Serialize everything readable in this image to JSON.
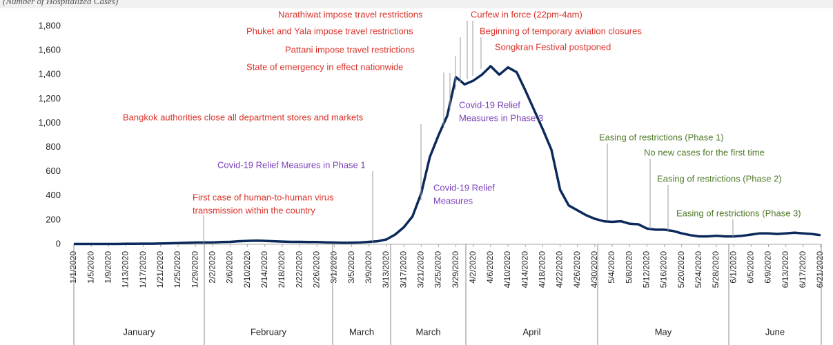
{
  "chart_data": {
    "type": "line",
    "subtitle": "(Number of Hospitalized Cases)",
    "categories": [
      "1/1/2020",
      null,
      "1/5/2020",
      null,
      "1/9/2020",
      null,
      "1/13/2020",
      null,
      "1/17/2020",
      null,
      "1/21/2020",
      null,
      "1/25/2020",
      null,
      "1/29/2020",
      null,
      "2/2/2020",
      null,
      "2/6/2020",
      null,
      "2/10/2020",
      null,
      "2/14/2020",
      null,
      "2/18/2020",
      null,
      "2/22/2020",
      null,
      "2/26/2020",
      null,
      "3/1/2020",
      null,
      "3/5/2020",
      null,
      "3/9/2020",
      null,
      "3/13/2020",
      null,
      "3/17/2020",
      null,
      "3/21/2020",
      null,
      "3/25/2020",
      null,
      "3/29/2020",
      null,
      "4/2/2020",
      null,
      "4/6/2020",
      null,
      "4/10/2020",
      null,
      "4/14/2020",
      null,
      "4/18/2020",
      null,
      "4/22/2020",
      null,
      "4/26/2020",
      null,
      "4/30/2020",
      null,
      "5/4/2020",
      null,
      "5/8/2020",
      null,
      "5/12/2020",
      null,
      "5/16/2020",
      null,
      "5/20/2020",
      null,
      "5/24/2020",
      null,
      "5/28/2020",
      null,
      "6/1/2020",
      null,
      "6/5/2020",
      null,
      "6/9/2020",
      null,
      "6/13/2020",
      null,
      "6/17/2020",
      null,
      "6/21/2020"
    ],
    "series": [
      {
        "color": "#0b2a5b",
        "values": [
          3,
          3,
          3,
          3,
          3,
          3,
          4,
          4,
          5,
          5,
          6,
          8,
          10,
          12,
          14,
          15,
          15,
          18,
          20,
          25,
          28,
          30,
          28,
          25,
          22,
          20,
          20,
          18,
          18,
          16,
          14,
          12,
          13,
          15,
          20,
          25,
          40,
          80,
          140,
          230,
          420,
          720,
          900,
          1060,
          1380,
          1320,
          1350,
          1400,
          1470,
          1400,
          1460,
          1420,
          1270,
          1110,
          950,
          780,
          450,
          320,
          280,
          240,
          210,
          190,
          185,
          190,
          170,
          165,
          130,
          120,
          120,
          110,
          90,
          75,
          65,
          65,
          70,
          65,
          65,
          70,
          80,
          90,
          90,
          85,
          90,
          95,
          90,
          85,
          75
        ]
      }
    ],
    "ylim": [
      0,
      1800
    ],
    "yticks": [
      0,
      200,
      400,
      600,
      800,
      {
        "value": 1000,
        "label": "1,000"
      },
      {
        "value": 1200,
        "label": "1,200"
      },
      {
        "value": 1400,
        "label": "1,400"
      },
      {
        "value": 1600,
        "label": "1,600"
      },
      {
        "value": 1800,
        "label": "1,800"
      }
    ],
    "month_labels": [
      "January",
      "February",
      "March",
      "March",
      "April",
      "May",
      "June"
    ],
    "annotations": [
      {
        "text": [
          "Narathiwat impose travel restrictions"
        ],
        "color": "#d9342b"
      },
      {
        "text": [
          "Curfew in force (22pm-4am)"
        ],
        "color": "#d9342b"
      },
      {
        "text": [
          "Phuket and Yala impose travel restrictions"
        ],
        "color": "#d9342b"
      },
      {
        "text": [
          "Beginning of temporary aviation closures"
        ],
        "color": "#d9342b"
      },
      {
        "text": [
          "Pattani impose travel restrictions"
        ],
        "color": "#d9342b"
      },
      {
        "text": [
          "Songkran Festival postponed"
        ],
        "color": "#d9342b"
      },
      {
        "text": [
          "State of emergency in effect nationwide"
        ],
        "color": "#d9342b"
      },
      {
        "text": [
          "Bangkok authorities close all department stores and markets"
        ],
        "color": "#d9342b"
      },
      {
        "text": [
          "Covid-19 Relief",
          "Measures in Phase 3"
        ],
        "color": "#7a3fb8"
      },
      {
        "text": [
          "Covid-19 Relief Measures in Phase 1"
        ],
        "color": "#7a3fb8"
      },
      {
        "text": [
          "First case of human-to-human virus",
          "transmission within the country"
        ],
        "color": "#d9342b"
      },
      {
        "text": [
          "Covid-19 Relief",
          "Measures"
        ],
        "color": "#7a3fb8"
      },
      {
        "text": [
          "Easing of restrictions (Phase 1)"
        ],
        "color": "#4f7a2a"
      },
      {
        "text": [
          "No new cases for the first time"
        ],
        "color": "#4f7a2a"
      },
      {
        "text": [
          "Easing of restrictions (Phase 2)"
        ],
        "color": "#4f7a2a"
      },
      {
        "text": [
          "Easing of restrictions (Phase 3)"
        ],
        "color": "#4f7a2a"
      }
    ]
  }
}
